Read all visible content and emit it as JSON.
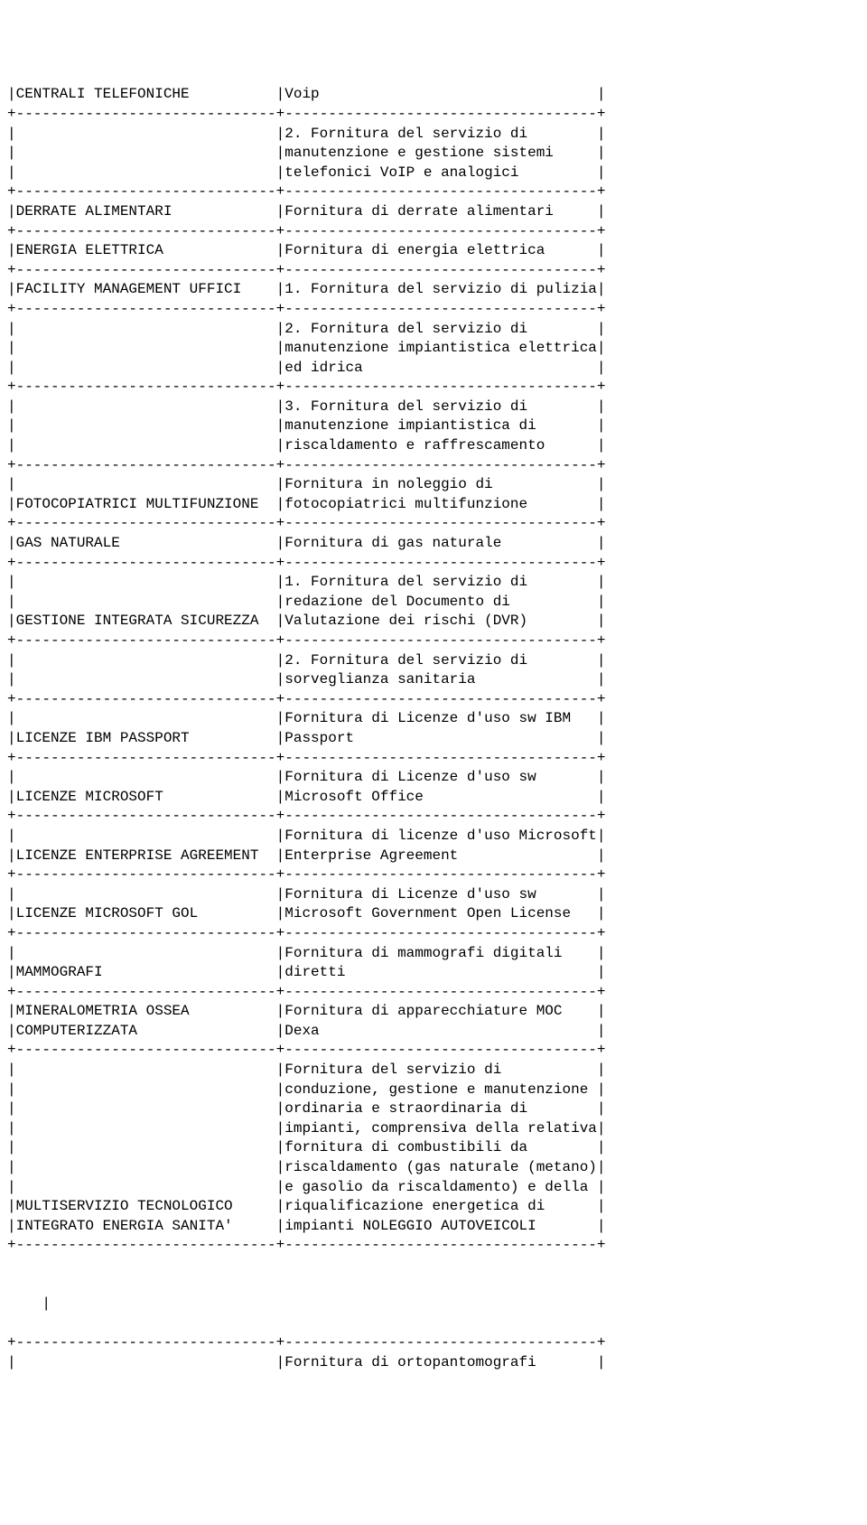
{
  "doc": {
    "col1_width": 30,
    "col2_width": 36,
    "font_family": "Courier New",
    "font_size_pt": 12,
    "text_color": "#000000",
    "background_color": "#ffffff",
    "rows": [
      {
        "left": [
          "CENTRALI TELEFONICHE"
        ],
        "right": [
          "Voip"
        ]
      },
      {
        "left": [
          ""
        ],
        "right": [
          "2. Fornitura del servizio di",
          "manutenzione e gestione sistemi",
          "telefonici VoIP e analogici"
        ]
      },
      {
        "left": [
          "DERRATE ALIMENTARI"
        ],
        "right": [
          "Fornitura di derrate alimentari"
        ]
      },
      {
        "left": [
          "ENERGIA ELETTRICA"
        ],
        "right": [
          "Fornitura di energia elettrica"
        ]
      },
      {
        "left": [
          "FACILITY MANAGEMENT UFFICI"
        ],
        "right": [
          "1. Fornitura del servizio di pulizia"
        ]
      },
      {
        "left": [
          ""
        ],
        "right": [
          "2. Fornitura del servizio di",
          "manutenzione impiantistica elettrica",
          "ed idrica"
        ]
      },
      {
        "left": [
          ""
        ],
        "right": [
          "3. Fornitura del servizio di",
          "manutenzione impiantistica di",
          "riscaldamento e raffrescamento"
        ]
      },
      {
        "left": [
          "",
          "FOTOCOPIATRICI MULTIFUNZIONE"
        ],
        "right": [
          "Fornitura in noleggio di",
          "fotocopiatrici multifunzione"
        ]
      },
      {
        "left": [
          "GAS NATURALE"
        ],
        "right": [
          "Fornitura di gas naturale"
        ]
      },
      {
        "left": [
          "",
          "",
          "GESTIONE INTEGRATA SICUREZZA"
        ],
        "right": [
          "1. Fornitura del servizio di",
          "redazione del Documento di",
          "Valutazione dei rischi (DVR)"
        ]
      },
      {
        "left": [
          ""
        ],
        "right": [
          "2. Fornitura del servizio di",
          "sorveglianza sanitaria"
        ]
      },
      {
        "left": [
          "",
          "LICENZE IBM PASSPORT"
        ],
        "right": [
          "Fornitura di Licenze d'uso sw IBM",
          "Passport"
        ]
      },
      {
        "left": [
          "",
          "LICENZE MICROSOFT"
        ],
        "right": [
          "Fornitura di Licenze d'uso sw",
          "Microsoft Office"
        ]
      },
      {
        "left": [
          "",
          "LICENZE ENTERPRISE AGREEMENT"
        ],
        "right": [
          "Fornitura di licenze d'uso Microsoft",
          "Enterprise Agreement"
        ]
      },
      {
        "left": [
          "",
          "LICENZE MICROSOFT GOL"
        ],
        "right": [
          "Fornitura di Licenze d'uso sw",
          "Microsoft Government Open License"
        ]
      },
      {
        "left": [
          "",
          "MAMMOGRAFI"
        ],
        "right": [
          "Fornitura di mammografi digitali",
          "diretti"
        ]
      },
      {
        "left": [
          "MINERALOMETRIA OSSEA",
          "COMPUTERIZZATA"
        ],
        "right": [
          "Fornitura di apparecchiature MOC",
          "Dexa"
        ]
      },
      {
        "left": [
          "",
          "",
          "",
          "",
          "",
          "",
          "",
          "MULTISERVIZIO TECNOLOGICO",
          "INTEGRATO ENERGIA SANITA'"
        ],
        "right": [
          "Fornitura del servizio di",
          "conduzione, gestione e manutenzione",
          "ordinaria e straordinaria di",
          "impianti, comprensiva della relativa",
          "fornitura di combustibili da",
          "riscaldamento (gas naturale (metano)",
          "e gasolio da riscaldamento) e della",
          "riqualificazione energetica di",
          "impianti NOLEGGIO AUTOVEICOLI"
        ]
      }
    ],
    "trailing": {
      "stray_line": "    |",
      "last_row": {
        "left": [
          ""
        ],
        "right": [
          "Fornitura di ortopantomografi"
        ]
      }
    }
  }
}
